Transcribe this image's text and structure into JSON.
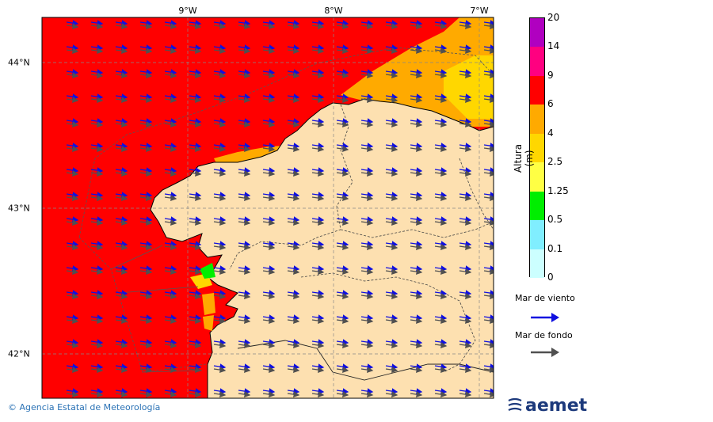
{
  "map": {
    "lon_labels": [
      "9°W",
      "8°W",
      "7°W"
    ],
    "lat_labels": [
      "44°N",
      "43°N",
      "42°N"
    ]
  },
  "colorbar": {
    "axis_label": "Altura (m)",
    "ticks": [
      "0",
      "0.1",
      "0.5",
      "1.25",
      "2.5",
      "4",
      "6",
      "9",
      "14",
      "20"
    ],
    "colors": [
      "#ccffff",
      "#80eeff",
      "#00ee00",
      "#ffff44",
      "#ffd700",
      "#ffaa00",
      "#ff0000",
      "#ff0080",
      "#b000c0"
    ]
  },
  "legend": {
    "wind_sea_label": "Mar de viento",
    "wind_sea_color": "#1010e0",
    "swell_label": "Mar de fondo",
    "swell_color": "#505050"
  },
  "footer": {
    "credit": "© Agencia Estatal de Meteorología",
    "brand": "aemet"
  },
  "colors": {
    "land": "#fde0b0",
    "sea_high": "#ff0000",
    "sea_mid": "#ffaa00"
  }
}
